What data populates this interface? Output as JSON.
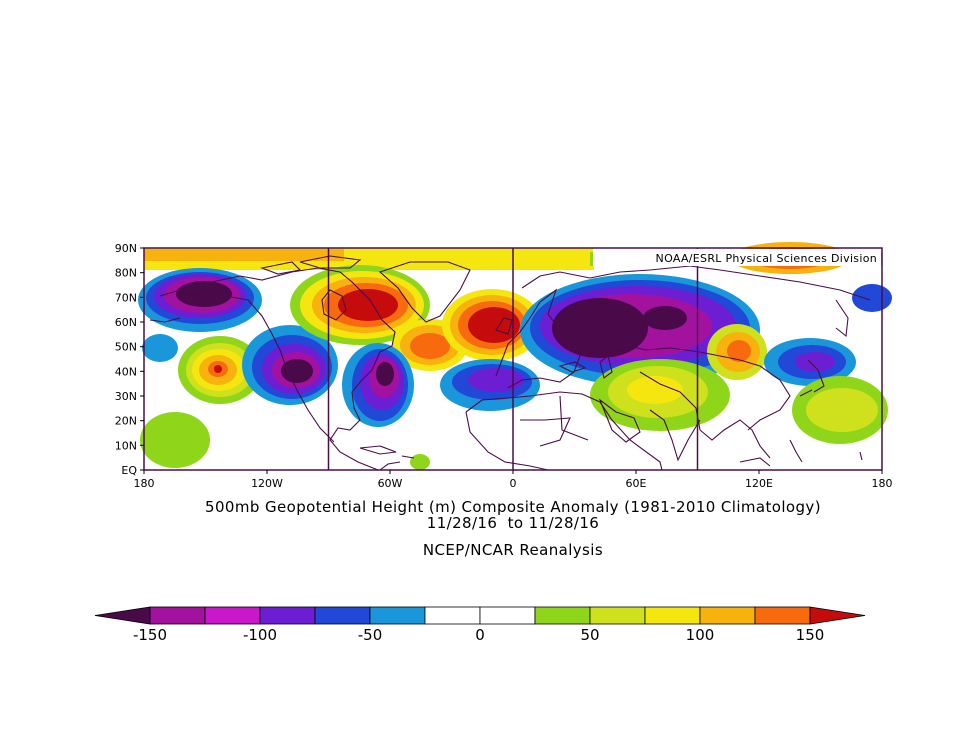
{
  "map": {
    "credit": "NOAA/ESRL Physical Sciences Division",
    "lat_labels": [
      "90N",
      "80N",
      "70N",
      "60N",
      "50N",
      "40N",
      "30N",
      "20N",
      "10N",
      "EQ"
    ],
    "lon_labels": [
      "180",
      "120W",
      "60W",
      "0",
      "60E",
      "120E",
      "180"
    ],
    "projection": "cylindrical equidistant",
    "extent": {
      "lon": [
        -180,
        180
      ],
      "lat": [
        0,
        90
      ]
    },
    "panel_divider_lons": [
      -90,
      0,
      90
    ],
    "anomaly_features": [
      {
        "lon": -147,
        "lat": 70,
        "value": -150
      },
      {
        "lon": -140,
        "lat": 42,
        "value": 120
      },
      {
        "lon": -100,
        "lat": 43,
        "value": -150
      },
      {
        "lon": -60,
        "lat": 40,
        "value": -140
      },
      {
        "lon": -65,
        "lat": 65,
        "value": 150
      },
      {
        "lon": -40,
        "lat": 50,
        "value": 125
      },
      {
        "lon": -10,
        "lat": 57,
        "value": 150
      },
      {
        "lon": 30,
        "lat": 55,
        "value": -150
      },
      {
        "lon": 65,
        "lat": 62,
        "value": -130
      },
      {
        "lon": 110,
        "lat": 48,
        "value": 125
      },
      {
        "lon": 130,
        "lat": 40,
        "value": -90
      },
      {
        "lon": 130,
        "lat": 82,
        "value": 150
      },
      {
        "lon": 145,
        "lat": 25,
        "value": 60
      },
      {
        "lon": -170,
        "lat": 20,
        "value": 40
      }
    ]
  },
  "titles": {
    "line1": "500mb Geopotential Height (m) Composite Anomaly (1981-2010 Climatology)",
    "line2": "11/28/16  to 11/28/16",
    "line3": "NCEP/NCAR Reanalysis"
  },
  "colorbar": {
    "tick_labels": [
      "-150",
      "-100",
      "-50",
      "0",
      "50",
      "100",
      "150"
    ],
    "colors": [
      "#4a0a4a",
      "#a3129f",
      "#c918c9",
      "#6d1ed3",
      "#2148d6",
      "#1a97db",
      "#ffffff",
      "#ffffff",
      "#8fd61a",
      "#cfe01c",
      "#f6e60f",
      "#f8b20d",
      "#f76a0e",
      "#c50b0b"
    ]
  }
}
